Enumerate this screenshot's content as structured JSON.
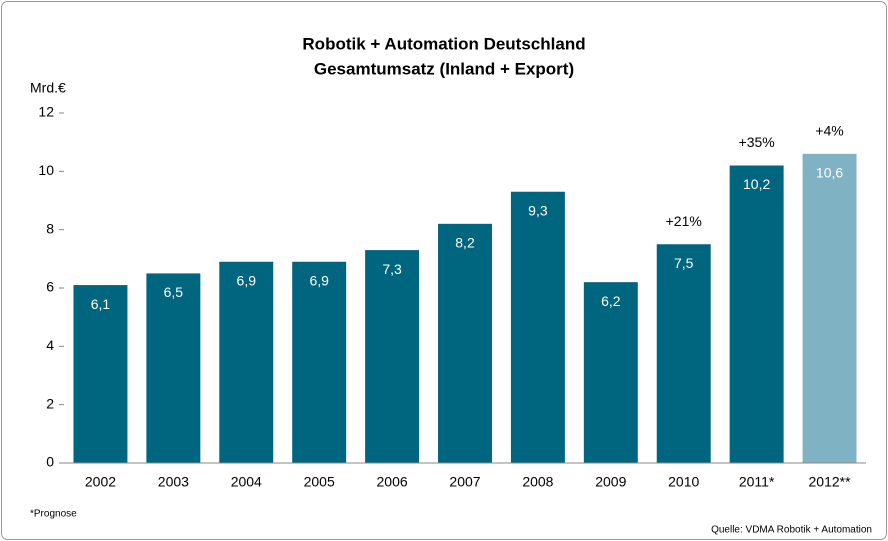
{
  "chart_data": {
    "type": "bar",
    "title": "Robotik + Automation Deutschland",
    "subtitle": "Gesamtumsatz (Inland + Export)",
    "y_axis_label": "Mrd.€",
    "categories": [
      "2002",
      "2003",
      "2004",
      "2005",
      "2006",
      "2007",
      "2008",
      "2009",
      "2010",
      "2011*",
      "2012**"
    ],
    "values": [
      6.1,
      6.5,
      6.9,
      6.9,
      7.3,
      8.2,
      9.3,
      6.2,
      7.5,
      10.2,
      10.6
    ],
    "value_labels": [
      "6,1",
      "6,5",
      "6,9",
      "6,9",
      "7,3",
      "8,2",
      "9,3",
      "6,2",
      "7,5",
      "10,2",
      "10,6"
    ],
    "growth_labels": [
      null,
      null,
      null,
      null,
      null,
      null,
      null,
      null,
      "+21%",
      "+35%",
      "+4%"
    ],
    "colors": [
      "#00657f",
      "#00657f",
      "#00657f",
      "#00657f",
      "#00657f",
      "#00657f",
      "#00657f",
      "#00657f",
      "#00657f",
      "#00657f",
      "#7fb2c3"
    ],
    "ylim": [
      0,
      12
    ],
    "yticks": [
      0,
      2,
      4,
      6,
      8,
      10,
      12
    ],
    "grid": false,
    "footnote": "*Prognose",
    "source": "Quelle: VDMA Robotik + Automation"
  }
}
